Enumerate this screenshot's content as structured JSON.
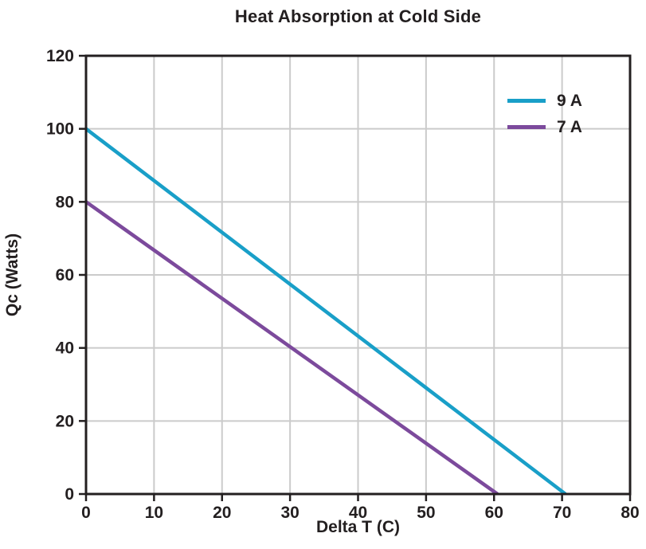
{
  "chart_data": {
    "type": "line",
    "title": "Heat Absorption at Cold Side",
    "xlabel": "Delta T (C)",
    "ylabel": "Qc (Watts)",
    "xlim": [
      0,
      80
    ],
    "ylim": [
      0,
      120
    ],
    "x_ticks": [
      0,
      10,
      20,
      30,
      40,
      50,
      60,
      70,
      80
    ],
    "y_ticks": [
      0,
      20,
      40,
      60,
      80,
      100,
      120
    ],
    "grid": true,
    "legend_position": "top-right",
    "series": [
      {
        "name": "9 A",
        "color": "#199fc8",
        "points": [
          [
            0,
            100
          ],
          [
            70.5,
            0
          ]
        ]
      },
      {
        "name": "7 A",
        "color": "#7c4a9c",
        "points": [
          [
            0,
            80
          ],
          [
            60.5,
            0
          ]
        ]
      }
    ],
    "colors": {
      "grid": "#cbcbcb",
      "axis": "#231f20",
      "text": "#231f20",
      "background": "#ffffff"
    }
  }
}
